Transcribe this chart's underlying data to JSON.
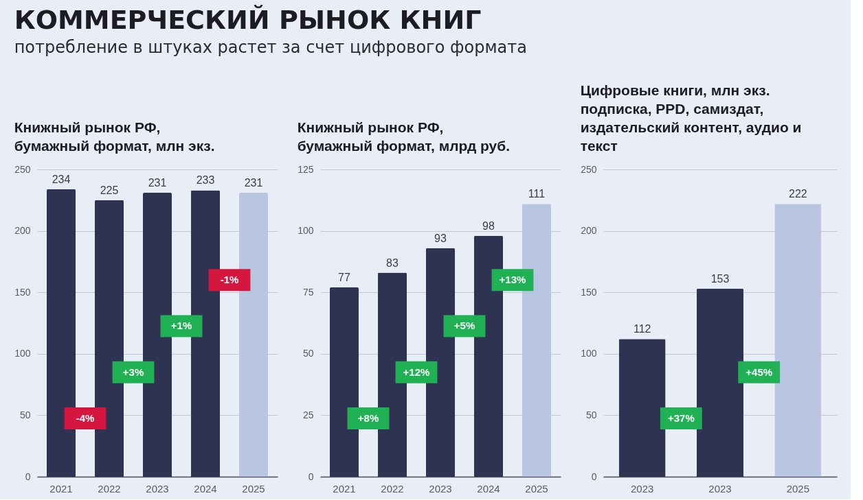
{
  "chart_data": [
    {
      "type": "other",
      "title": "КОММЕРЧЕСКИЙ РЫНОК КНИГ",
      "subtitle": "потребление в штуках растет за счет цифрового формата"
    },
    {
      "type": "bar",
      "title": "Книжный рынок РФ,\nбумажный формат, млн экз.",
      "categories": [
        "2021",
        "2022",
        "2023",
        "2024",
        "2025"
      ],
      "values": [
        234,
        225,
        231,
        233,
        231
      ],
      "colors": [
        "#2f3352",
        "#2f3352",
        "#2f3352",
        "#2f3352",
        "#b9c6e2"
      ],
      "ylim": [
        0,
        250
      ],
      "yticks": [
        0,
        50,
        100,
        150,
        200,
        250
      ],
      "grid": "y",
      "data_labels": true,
      "annotations": [
        "-4%",
        "+3%",
        "+1%",
        "-1%"
      ]
    },
    {
      "type": "bar",
      "title": "Книжный рынок РФ,\nбумажный формат, млрд руб.",
      "categories": [
        "2021",
        "2022",
        "2023",
        "2024",
        "2025"
      ],
      "values": [
        77,
        83,
        93,
        98,
        111
      ],
      "colors": [
        "#2f3352",
        "#2f3352",
        "#2f3352",
        "#2f3352",
        "#b9c6e2"
      ],
      "ylim": [
        0,
        125
      ],
      "yticks": [
        0,
        25,
        50,
        75,
        100,
        125
      ],
      "grid": "y",
      "data_labels": true,
      "annotations": [
        "+8%",
        "+12%",
        "+5%",
        "+13%"
      ]
    },
    {
      "type": "bar",
      "title": "Цифровые книги, млн экз.\nподписка, PPD, самиздат,\nиздательский контент, аудио и\nтекст",
      "categories": [
        "2023",
        "2023",
        "2025"
      ],
      "values": [
        112,
        153,
        222
      ],
      "colors": [
        "#2f3352",
        "#2f3352",
        "#b9c6e2"
      ],
      "ylim": [
        0,
        250
      ],
      "yticks": [
        0,
        50,
        100,
        150,
        200,
        250
      ],
      "grid": "y",
      "data_labels": true,
      "annotations": [
        "+37%",
        "+45%"
      ]
    }
  ]
}
